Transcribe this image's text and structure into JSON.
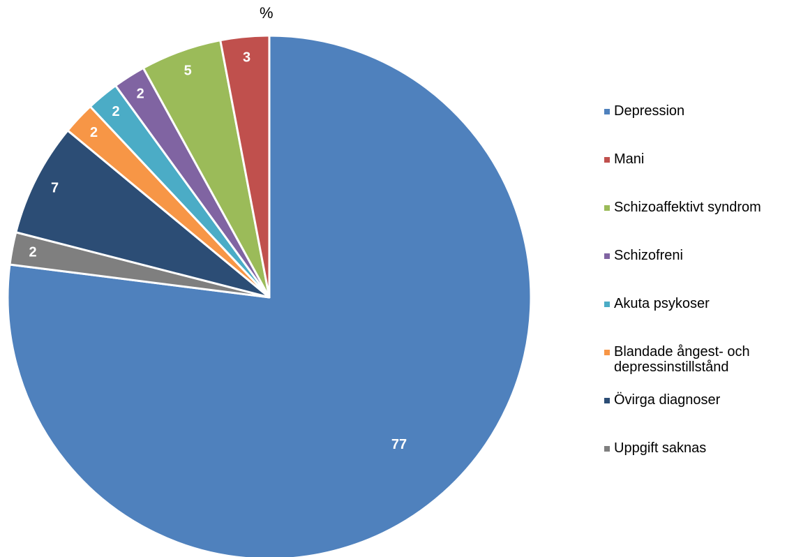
{
  "chart_data": {
    "type": "pie",
    "title": "%",
    "categories": [
      "Depression",
      "Mani",
      "Schizoaffektivt syndrom",
      "Schizofreni",
      "Akuta psykoser",
      "Blandade ångest- och\ndepressinstillstånd",
      "Övirga diagnoser",
      "Uppgift saknas"
    ],
    "values": [
      77,
      3,
      5,
      2,
      2,
      2,
      7,
      2
    ],
    "colors": [
      "#4F81BD",
      "#C0504D",
      "#9BBB59",
      "#8064A2",
      "#4BACC6",
      "#F79646",
      "#2C4D75",
      "#7F7F7F"
    ],
    "legend": "right",
    "start_angle": "12 o'clock",
    "direction": "clockwise"
  }
}
